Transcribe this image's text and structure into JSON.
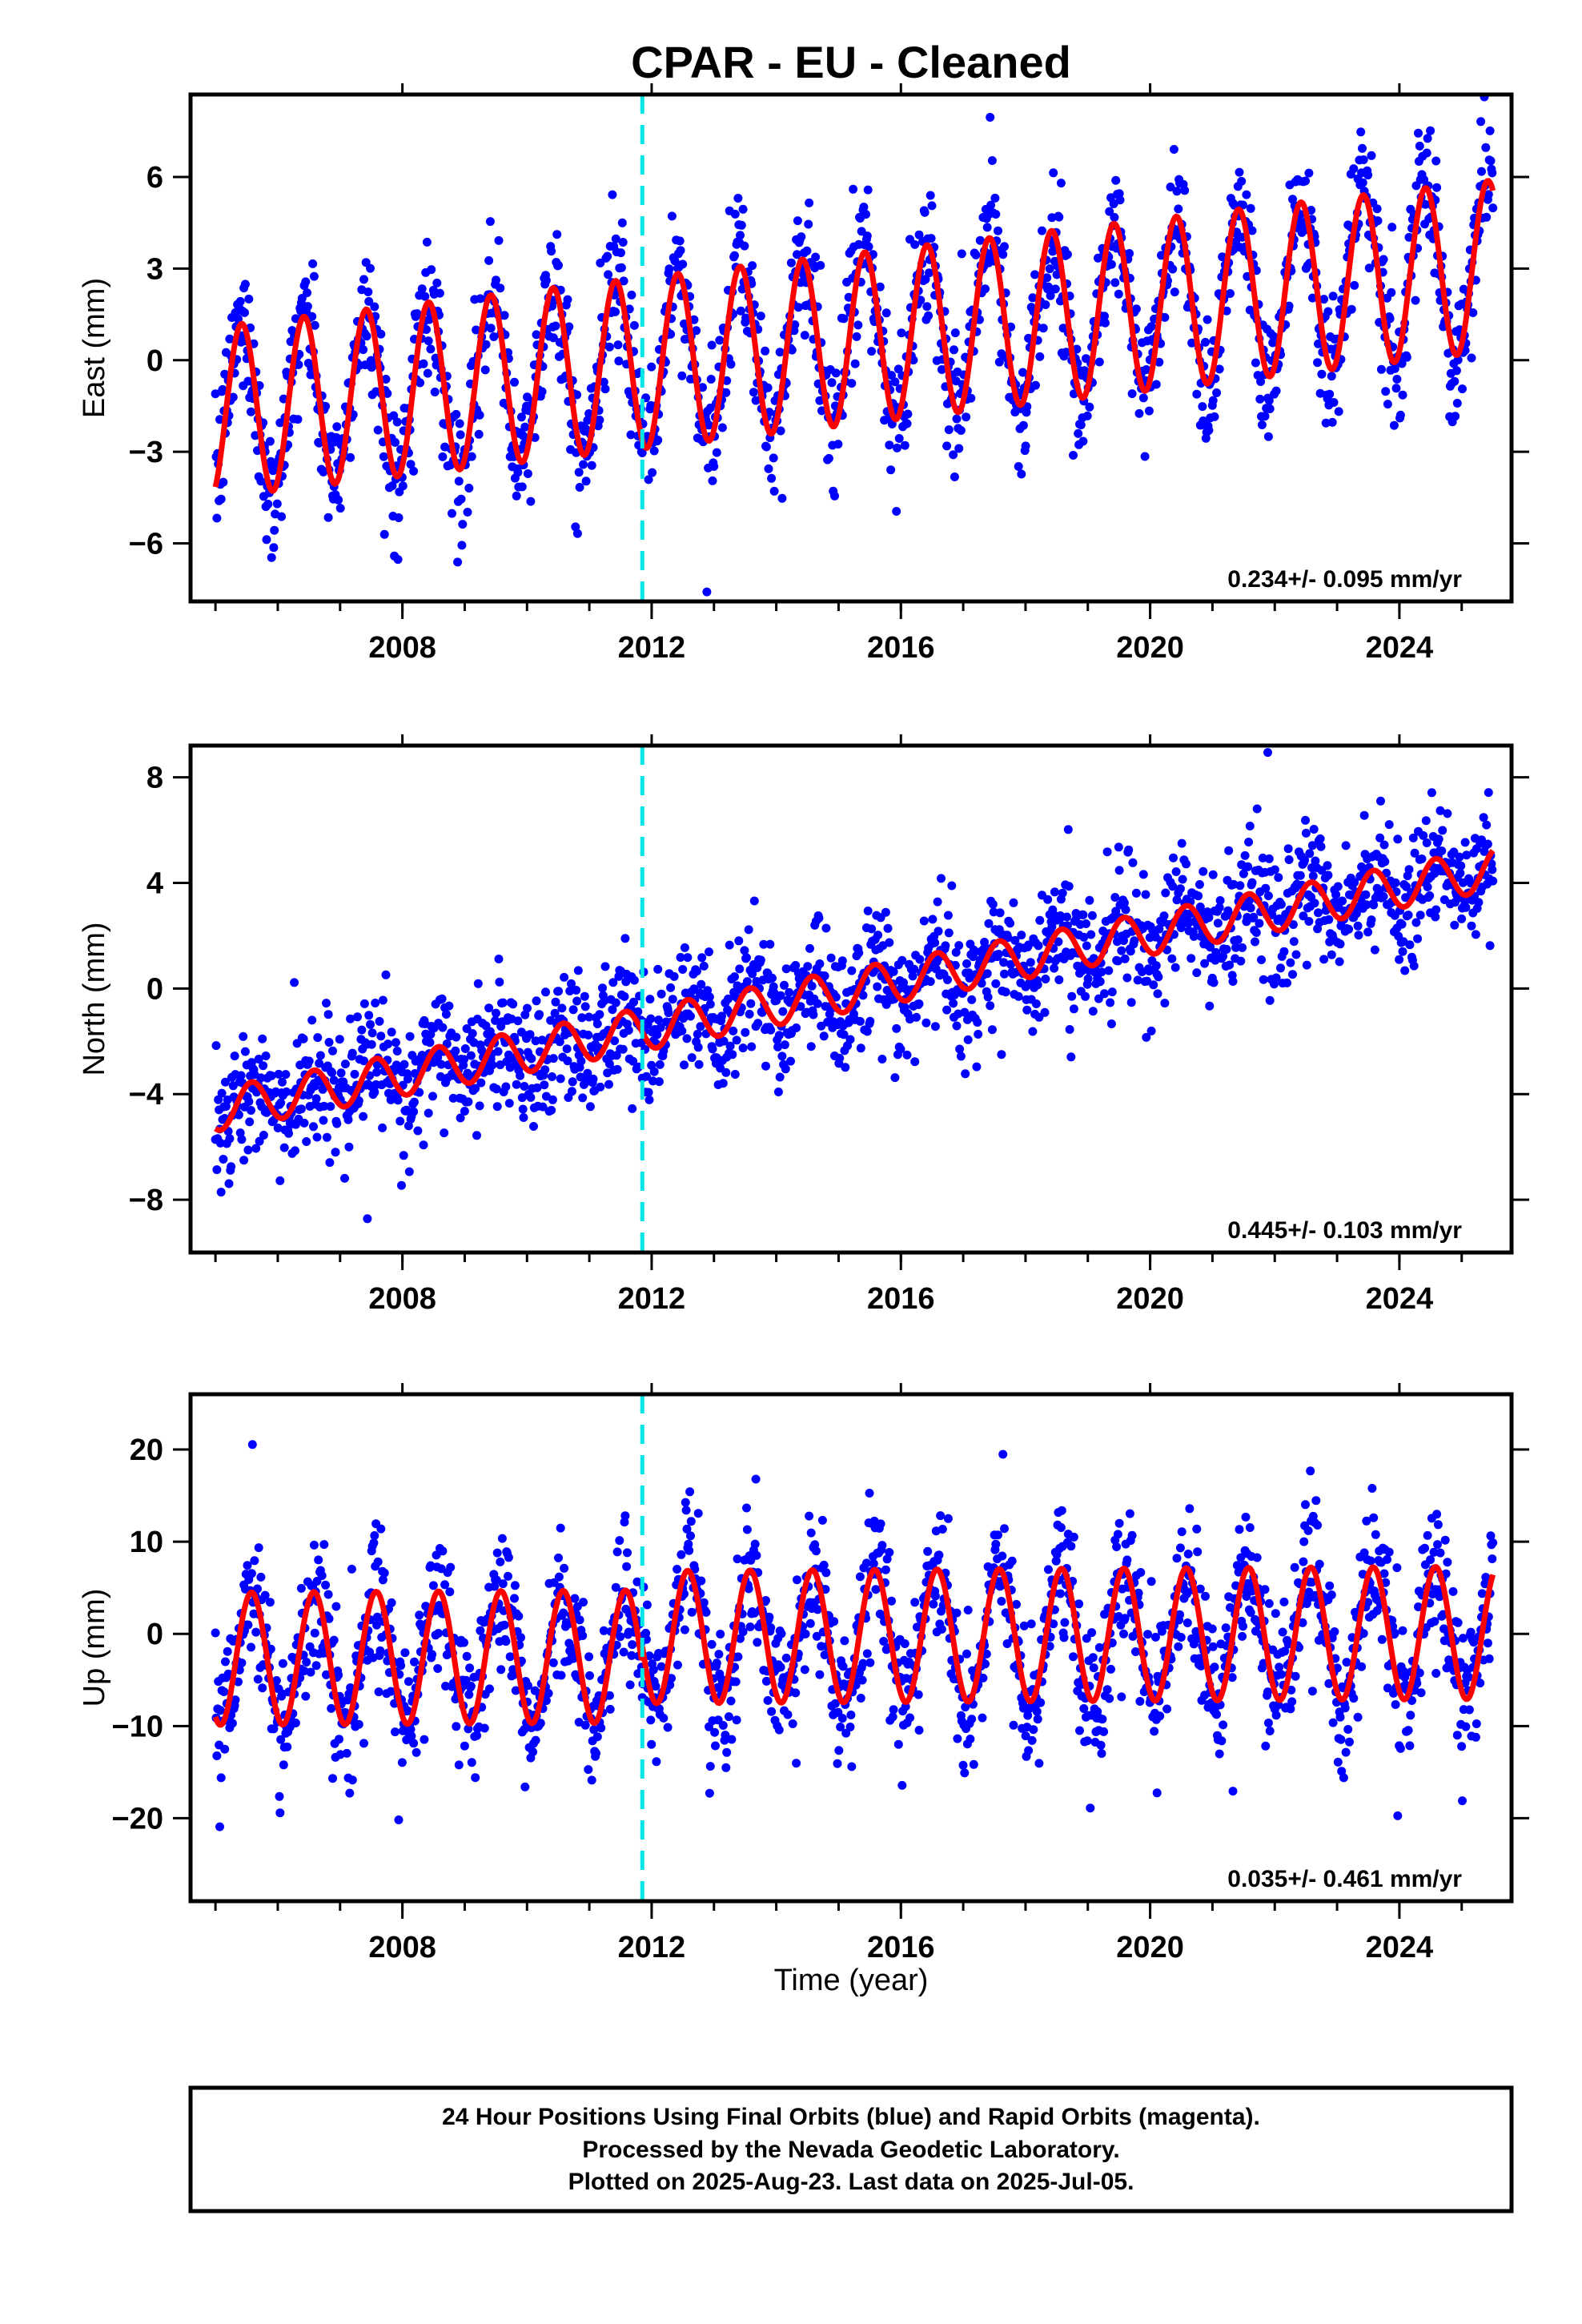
{
  "title": "CPAR  - EU - Cleaned",
  "x_axis_label": "Time (year)",
  "footer": {
    "lines": [
      "24 Hour Positions Using Final Orbits (blue) and Rapid Orbits (magenta).",
      "Processed by the Nevada Geodetic Laboratory.",
      "Plotted on 2025-Aug-23. Last data on 2025-Jul-05."
    ]
  },
  "colors": {
    "data_points": "#0000ff",
    "model_fit": "#ff0000",
    "event_line": "#00e5e5",
    "axes": "#000000"
  },
  "chart_data": [
    {
      "type": "scatter",
      "component": "East",
      "ylabel": "East (mm)",
      "xlim": [
        2004.6,
        2025.8
      ],
      "ylim": [
        -7.9,
        8.7
      ],
      "xticks": [
        2008,
        2012,
        2016,
        2020,
        2024
      ],
      "xtick_labels": [
        "2008",
        "2012",
        "2016",
        "2020",
        "2024"
      ],
      "yticks": [
        -6,
        -3,
        0,
        3,
        6
      ],
      "ytick_labels": [
        "−6",
        "−3",
        "0",
        "3",
        "6"
      ],
      "event_line_x": 2011.85,
      "rate_label": "0.234+/- 0.095 mm/yr",
      "data_range_years": [
        2005.0,
        2025.5
      ],
      "model": {
        "offset_at_start": -1.7,
        "trend_mm_per_year": 0.234,
        "seasonal_amplitude": 2.8,
        "peak_phase_year_fraction": 0.42,
        "step_at_event": 0.0
      },
      "scatter_std_mm": 1.1
    },
    {
      "type": "scatter",
      "component": "North",
      "ylabel": "North (mm)",
      "xlim": [
        2004.6,
        2025.8
      ],
      "ylim": [
        -10.0,
        9.2
      ],
      "xticks": [
        2008,
        2012,
        2016,
        2020,
        2024
      ],
      "xtick_labels": [
        "2008",
        "2012",
        "2016",
        "2020",
        "2024"
      ],
      "yticks": [
        -8,
        -4,
        0,
        4,
        8
      ],
      "ytick_labels": [
        "−8",
        "−4",
        "0",
        "4",
        "8"
      ],
      "event_line_x": 2011.85,
      "rate_label": "0.445+/- 0.103 mm/yr",
      "data_range_years": [
        2005.0,
        2025.5
      ],
      "model": {
        "offset_at_start": -4.6,
        "trend_mm_per_year": 0.445,
        "seasonal_amplitude": 0.8,
        "peak_phase_year_fraction": 0.58,
        "step_at_event": 0.0
      },
      "scatter_std_mm": 1.2
    },
    {
      "type": "scatter",
      "component": "Up",
      "ylabel": "Up (mm)",
      "xlim": [
        2004.6,
        2025.8
      ],
      "ylim": [
        -29.0,
        26.0
      ],
      "xticks": [
        2008,
        2012,
        2016,
        2020,
        2024
      ],
      "xtick_labels": [
        "2008",
        "2012",
        "2016",
        "2020",
        "2024"
      ],
      "yticks": [
        -20,
        -10,
        0,
        10,
        20
      ],
      "ytick_labels": [
        "−20",
        "−10",
        "0",
        "10",
        "20"
      ],
      "event_line_x": 2011.85,
      "rate_label": "0.035+/- 0.461 mm/yr",
      "data_range_years": [
        2005.0,
        2025.5
      ],
      "model": {
        "offset_at_start": -2.7,
        "trend_mm_per_year": 0.035,
        "seasonal_amplitude": 7.2,
        "peak_phase_year_fraction": 0.58,
        "step_at_event": 2.1
      },
      "scatter_std_mm": 3.8
    }
  ]
}
